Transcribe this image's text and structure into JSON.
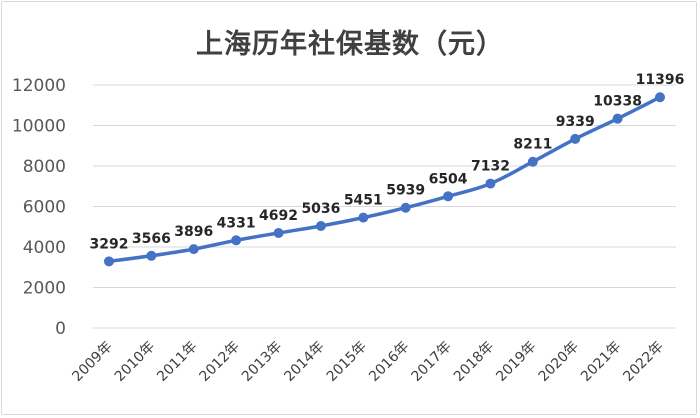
{
  "chart_data": {
    "type": "line",
    "title": "上海历年社保基数（元）",
    "categories": [
      "2009年",
      "2010年",
      "2011年",
      "2012年",
      "2013年",
      "2014年",
      "2015年",
      "2016年",
      "2017年",
      "2018年",
      "2019年",
      "2020年",
      "2021年",
      "2022年"
    ],
    "series": [
      {
        "values": [
          3292,
          3566,
          3896,
          4331,
          4692,
          5036,
          5451,
          5939,
          6504,
          7132,
          8211,
          9339,
          10338,
          11396
        ]
      }
    ],
    "yticks": [
      "0",
      "2000",
      "4000",
      "6000",
      "8000",
      "10000",
      "12000"
    ],
    "ylim": [
      0,
      12000
    ],
    "grid": true,
    "legend": "none",
    "colors": {
      "line": "#4472c4",
      "grid": "#d9d9d9"
    }
  }
}
